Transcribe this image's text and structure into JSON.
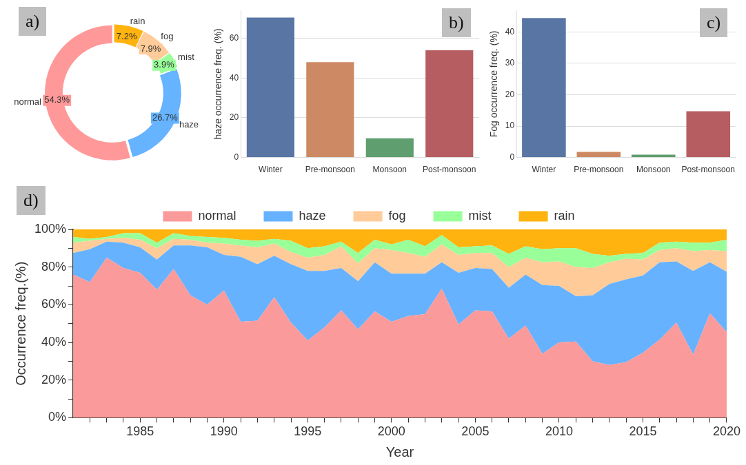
{
  "chart_data": [
    {
      "type": "donut",
      "annotations": [
        "a)"
      ],
      "categories": [
        "rain",
        "fog",
        "mist",
        "haze",
        "normal"
      ],
      "values": [
        7.2,
        7.9,
        3.9,
        26.7,
        54.3
      ],
      "colors": [
        "#ffb30f",
        "#ffcc99",
        "#99ff99",
        "#66b3ff",
        "#ff9999"
      ],
      "value_labels": [
        "7.2%",
        "7.9%",
        "3.9%",
        "26.7%",
        "54.3%"
      ]
    },
    {
      "type": "bar",
      "annotations": [
        "b)"
      ],
      "ylabel": "haze occurrence freq. (%)",
      "categories": [
        "Winter",
        "Pre-monsoon",
        "Monsoon",
        "Post-monsoon"
      ],
      "values": [
        70.4,
        48,
        9.7,
        54
      ],
      "colors": [
        "#5875a4",
        "#cc8963",
        "#5f9e6e",
        "#b55d60"
      ],
      "ylim": [
        0,
        74
      ],
      "yticks": [
        0,
        20,
        40,
        60
      ],
      "grid": "y"
    },
    {
      "type": "bar",
      "annotations": [
        "c)"
      ],
      "ylabel": "Fog occurrence freq. (%)",
      "categories": [
        "Winter",
        "Pre-monsoon",
        "Monsoon",
        "Post-monsoon"
      ],
      "values": [
        44.4,
        1.8,
        0.9,
        14.7
      ],
      "colors": [
        "#5875a4",
        "#cc8963",
        "#5f9e6e",
        "#b55d60"
      ],
      "ylim": [
        0,
        46.8
      ],
      "yticks": [
        0,
        10,
        20,
        30,
        40
      ],
      "grid": "y"
    },
    {
      "type": "area",
      "stacked": true,
      "annotations": [
        "d)"
      ],
      "xlabel": "Year",
      "ylabel": "Occurrence freq.(%)",
      "legend": "top",
      "marker": "none",
      "x": [
        1981,
        1982,
        1983,
        1984,
        1985,
        1986,
        1987,
        1988,
        1989,
        1990,
        1991,
        1992,
        1993,
        1994,
        1995,
        1996,
        1997,
        1998,
        1999,
        2000,
        2001,
        2002,
        2003,
        2004,
        2005,
        2006,
        2007,
        2008,
        2009,
        2010,
        2011,
        2012,
        2013,
        2014,
        2015,
        2016,
        2017,
        2018,
        2019,
        2020
      ],
      "xlim": [
        1981,
        2020
      ],
      "xticks": [
        {
          "value": 1982,
          "label": null
        },
        {
          "value": 1983,
          "label": null
        },
        {
          "value": 1984,
          "label": null
        },
        1985,
        {
          "value": 1986,
          "label": null
        },
        {
          "value": 1987,
          "label": null
        },
        {
          "value": 1988,
          "label": null
        },
        {
          "value": 1989,
          "label": null
        },
        1990,
        {
          "value": 1991,
          "label": null
        },
        {
          "value": 1992,
          "label": null
        },
        {
          "value": 1993,
          "label": null
        },
        {
          "value": 1994,
          "label": null
        },
        1995,
        {
          "value": 1996,
          "label": null
        },
        {
          "value": 1997,
          "label": null
        },
        {
          "value": 1998,
          "label": null
        },
        {
          "value": 1999,
          "label": null
        },
        2000,
        {
          "value": 2001,
          "label": null
        },
        {
          "value": 2002,
          "label": null
        },
        {
          "value": 2003,
          "label": null
        },
        {
          "value": 2004,
          "label": null
        },
        2005,
        {
          "value": 2006,
          "label": null
        },
        {
          "value": 2007,
          "label": null
        },
        {
          "value": 2008,
          "label": null
        },
        {
          "value": 2009,
          "label": null
        },
        2010,
        {
          "value": 2011,
          "label": null
        },
        {
          "value": 2012,
          "label": null
        },
        {
          "value": 2013,
          "label": null
        },
        {
          "value": 2014,
          "label": null
        },
        2015,
        {
          "value": 2016,
          "label": null
        },
        {
          "value": 2017,
          "label": null
        },
        {
          "value": 2018,
          "label": null
        },
        {
          "value": 2019,
          "label": null
        },
        2020
      ],
      "ylim": [
        0,
        100
      ],
      "yticks": [
        {
          "value": 0,
          "label": "0%"
        },
        {
          "value": 10,
          "label": null
        },
        {
          "value": 20,
          "label": "20%"
        },
        {
          "value": 30,
          "label": null
        },
        {
          "value": 40,
          "label": "40%"
        },
        {
          "value": 50,
          "label": null
        },
        {
          "value": 60,
          "label": "60%"
        },
        {
          "value": 70,
          "label": null
        },
        {
          "value": 80,
          "label": "80%"
        },
        {
          "value": 90,
          "label": null
        },
        {
          "value": 100,
          "label": "100%"
        }
      ],
      "series": [
        {
          "name": "normal",
          "color": "#fa9a9a",
          "values": [
            76,
            72,
            85,
            79.5,
            77,
            68,
            79,
            65,
            60,
            67.5,
            51,
            51.5,
            64,
            50.5,
            41,
            48,
            57,
            47,
            56.5,
            51,
            54,
            55,
            68.5,
            49.5,
            57,
            56.5,
            42,
            49,
            34,
            40,
            40.5,
            30,
            28,
            29.5,
            34.5,
            41.5,
            50.5,
            33.5,
            55.5,
            45.5
          ]
        },
        {
          "name": "haze",
          "color": "#66b2ff",
          "values": [
            11.5,
            17.5,
            8.5,
            13.5,
            13.5,
            16,
            12.5,
            26.5,
            30.5,
            19,
            34.5,
            30,
            22,
            31,
            37,
            30,
            22.5,
            25.5,
            26,
            25.5,
            22.5,
            21.5,
            14,
            27.5,
            22.5,
            22.5,
            27,
            27,
            36.5,
            30,
            24,
            35,
            43,
            44,
            41,
            41,
            32.5,
            44.5,
            27,
            32
          ]
        },
        {
          "name": "fog",
          "color": "#ffcc99",
          "values": [
            5.5,
            4.5,
            1.5,
            2.5,
            4,
            6,
            3.5,
            3,
            2.5,
            6,
            6,
            9,
            6.5,
            6.5,
            7,
            8.5,
            11.5,
            9.5,
            7.5,
            12.5,
            11,
            9,
            9.5,
            9.5,
            8,
            8.5,
            11,
            9,
            12,
            13,
            15.5,
            14.5,
            11.5,
            11,
            8.5,
            6.5,
            7,
            10.5,
            6.5,
            11
          ]
        },
        {
          "name": "mist",
          "color": "#99ff99",
          "values": [
            3,
            1,
            1,
            2.5,
            3.5,
            3,
            3,
            2,
            3,
            3,
            3,
            3.5,
            2.5,
            6,
            5,
            4.5,
            2.5,
            5.5,
            4.5,
            3,
            7,
            5.5,
            5,
            4,
            3.5,
            4,
            7,
            6,
            7,
            7,
            10,
            7.5,
            3.5,
            2.5,
            3.5,
            4,
            3.5,
            4.5,
            4,
            6
          ]
        },
        {
          "name": "rain",
          "color": "#ffb30f",
          "values": [
            4,
            5,
            4,
            2,
            2,
            7,
            2,
            3.5,
            4,
            4.5,
            5.5,
            6,
            5,
            6,
            10,
            9,
            6.5,
            12.5,
            5.5,
            8,
            5.5,
            9,
            3,
            9.5,
            9,
            8.5,
            13,
            9,
            10.5,
            10,
            10,
            13,
            14,
            13,
            12.5,
            7,
            6.5,
            7,
            7,
            5.5
          ]
        }
      ]
    }
  ]
}
